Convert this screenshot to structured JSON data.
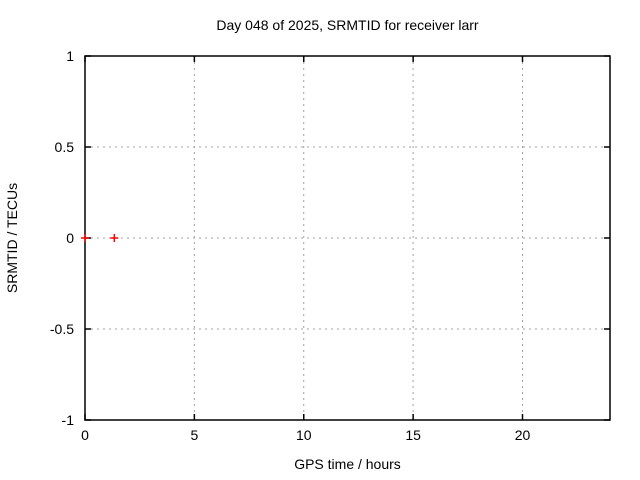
{
  "chart_data": {
    "type": "scatter",
    "title": "Day 048 of 2025, SRMTID for receiver larr",
    "xlabel": "GPS time / hours",
    "ylabel": "SRMTID / TECUs",
    "xlim": [
      0,
      24
    ],
    "ylim": [
      -1,
      1
    ],
    "xticks": [
      0,
      5,
      10,
      15,
      20
    ],
    "yticks": [
      -1,
      -0.5,
      0,
      0.5,
      1
    ],
    "grid": "dashed",
    "legend": "none",
    "series": [
      {
        "marker": "plus",
        "color": "#ff0000",
        "points": [
          [
            0.0,
            0.0
          ],
          [
            1.34,
            0.0
          ]
        ]
      }
    ],
    "colors": {
      "background": "#ffffff",
      "frame": "#000000",
      "grid": "#a0a0a0",
      "text": "#000000"
    }
  }
}
